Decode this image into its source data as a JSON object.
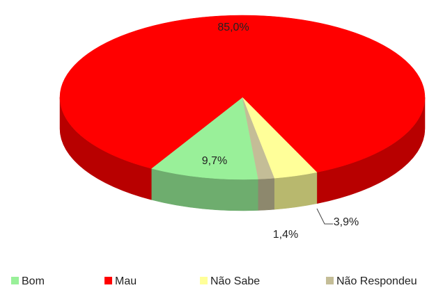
{
  "chart_data": {
    "type": "pie",
    "categories": [
      "Bom",
      "Mau",
      "Não Sabe",
      "Não Respondeu"
    ],
    "values": [
      9.7,
      85.0,
      3.9,
      1.4
    ],
    "value_labels": [
      "9,7%",
      "85,0%",
      "3,9%",
      "1,4%"
    ],
    "colors": [
      "#99f099",
      "#ff0000",
      "#ffff99",
      "#c4bd97"
    ],
    "legend": "bottom"
  }
}
